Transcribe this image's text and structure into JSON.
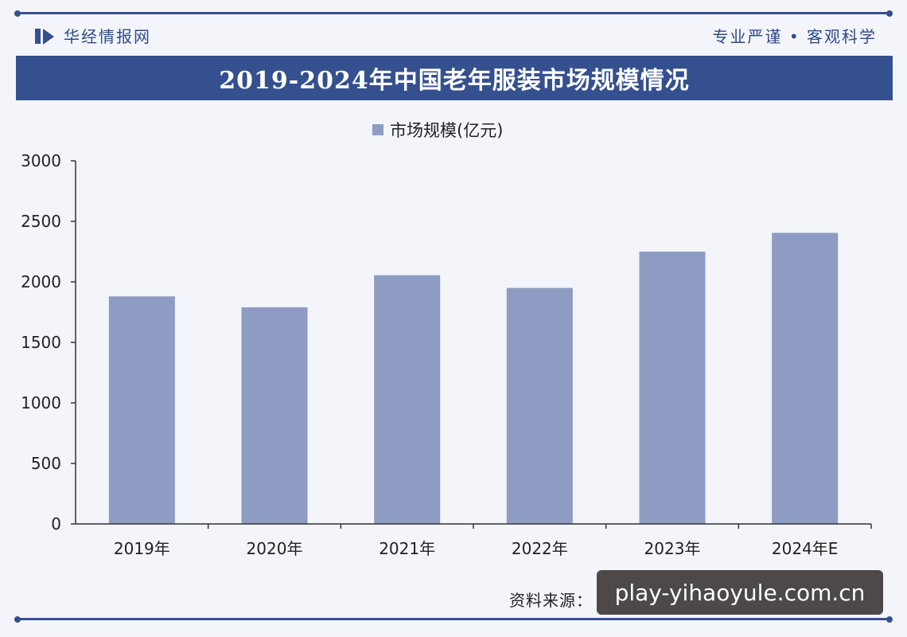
{
  "header": {
    "brand": "华经情报网",
    "slogan": "专业严谨 • 客观科学"
  },
  "title": "2019-2024年中国老年服装市场规模情况",
  "source_label": "资料来源：",
  "watermark": "play-yihaoyule.com.cn",
  "colors": {
    "frame": "#35508f",
    "title_bar": "#34508e",
    "bar": "#8e9cc3",
    "background": "#f3f5fa"
  },
  "chart_data": {
    "type": "bar",
    "categories": [
      "2019年",
      "2020年",
      "2021年",
      "2022年",
      "2023年",
      "2024年E"
    ],
    "series": [
      {
        "name": "市场规模(亿元)",
        "values": [
          1880,
          1790,
          2055,
          1950,
          2250,
          2405
        ]
      }
    ],
    "ylim": [
      0,
      3000
    ],
    "yticks": [
      "0",
      "500",
      "1000",
      "1500",
      "2000",
      "2500",
      "3000"
    ],
    "legend": "top-center",
    "grid": false
  }
}
